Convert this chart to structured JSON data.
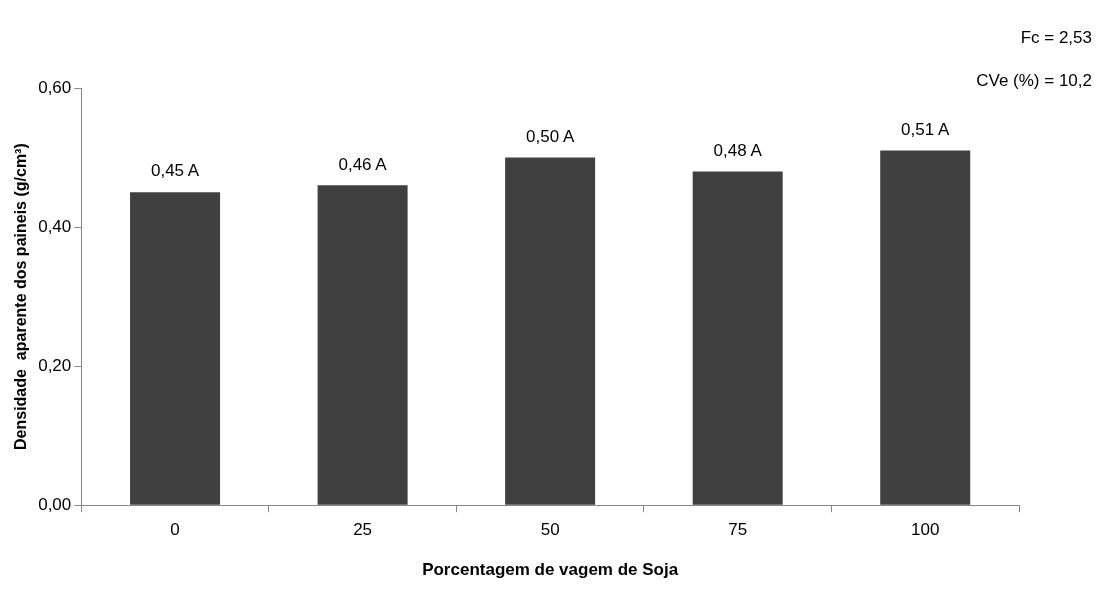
{
  "chart_data": {
    "type": "bar",
    "xlabel": "Porcentagem de vagem de Soja",
    "ylabel": "Densidade  aparente dos paineis (g/cm³)",
    "categories": [
      "0",
      "25",
      "50",
      "75",
      "100"
    ],
    "values": [
      0.45,
      0.46,
      0.5,
      0.48,
      0.51
    ],
    "value_labels": [
      "0,45 A",
      "0,46 A",
      "0,50 A",
      "0,48 A",
      "0,51 A"
    ],
    "color": "#404040",
    "ylim": [
      0,
      0.6
    ],
    "yticks": [
      {
        "value": 0,
        "label": "0,00"
      },
      {
        "value": 0.2,
        "label": "0,20"
      },
      {
        "value": 0.4,
        "label": "0,40"
      },
      {
        "value": 0.6,
        "label": "0,60"
      }
    ],
    "grid": false,
    "legend": false,
    "annotations": [
      "Fc = 2,53",
      "CVe (%) = 10,2"
    ]
  }
}
